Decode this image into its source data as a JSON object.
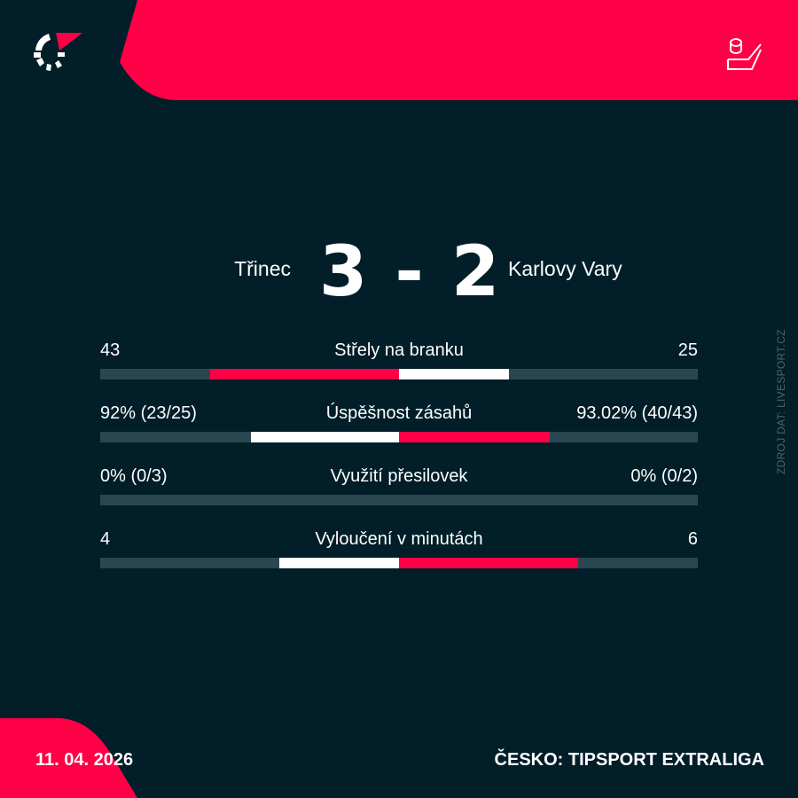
{
  "colors": {
    "background": "#011e29",
    "accent": "#ff0046",
    "track": "#2a4751",
    "secondary": "#ffffff"
  },
  "icons": {
    "logo": "flashscore-logo",
    "sport": "hockey-icon"
  },
  "match": {
    "home": "Třinec",
    "away": "Karlovy Vary",
    "score": "3 - 2"
  },
  "stats": [
    {
      "name": "Střely na branku",
      "home": "43",
      "away": "25",
      "home_share": 0.632,
      "away_share": 0.368,
      "leader": "home"
    },
    {
      "name": "Úspěšnost zásahů",
      "home": "92% (23/25)",
      "away": "93.02% (40/43)",
      "home_share": 0.497,
      "away_share": 0.503,
      "leader": "away"
    },
    {
      "name": "Využití přesilovek",
      "home": "0% (0/3)",
      "away": "0% (0/2)",
      "home_share": 0,
      "away_share": 0,
      "leader": "none"
    },
    {
      "name": "Vyloučení v minutách",
      "home": "4",
      "away": "6",
      "home_share": 0.4,
      "away_share": 0.6,
      "leader": "away"
    }
  ],
  "source": "ZDROJ DAT: LIVESPORT.CZ",
  "footer": {
    "date": "11. 04. 2026",
    "league": "ČESKO: TIPSPORT EXTRALIGA"
  }
}
